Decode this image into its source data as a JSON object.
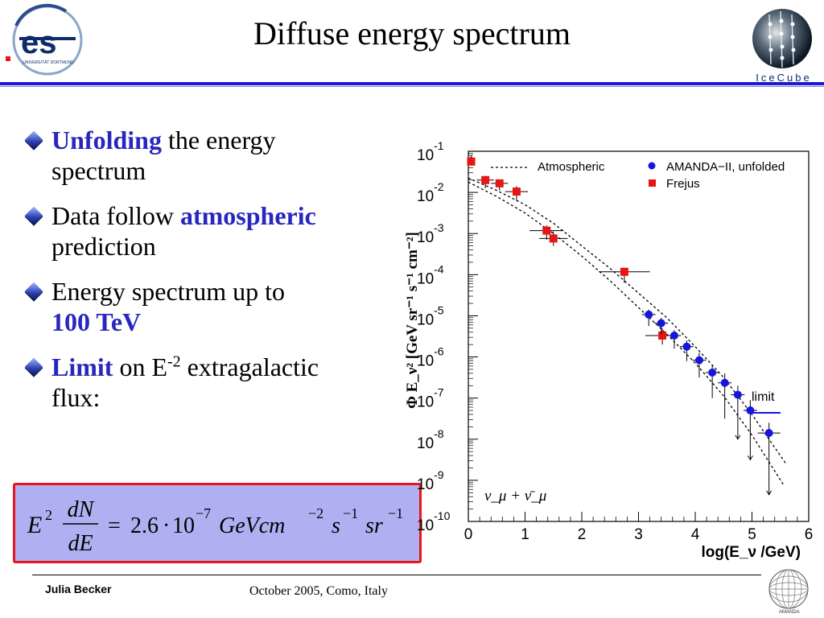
{
  "slide": {
    "title": "Diffuse energy spectrum",
    "logo_left_text": "UNIVERSITÄT DORTMUND",
    "logo_right_text": "IceCube",
    "footer_logo_text": "AMANDA",
    "author": "Julia Becker",
    "date_location": "October 2005, Como, Italy"
  },
  "bullets": [
    {
      "highlight": "Unfolding",
      "line1": " the energy",
      "line2": "spectrum"
    },
    {
      "pre": "Data follow ",
      "highlight": "atmospheric",
      "line2": "prediction"
    },
    {
      "line1": "Energy spectrum up to",
      "highlight": "100 TeV"
    },
    {
      "highlight": "Limit",
      "pre": " on E",
      "sup": "-2",
      "post": " extragalactic",
      "line2": "flux:"
    }
  ],
  "formula": {
    "lhs_E": "E",
    "lhs_exp": "2",
    "frac_num": "dN",
    "frac_den": "dE",
    "equals": "=",
    "coef": "2.6",
    "dot": "·",
    "base": "10",
    "base_exp": "−7",
    "u1": "GeVcm",
    "u1_exp": "−2",
    "u2": "s",
    "u2_exp": "−1",
    "u3": "sr",
    "u3_exp": "−1"
  },
  "colors": {
    "accent_blue": "#2727c0",
    "rule_blue": "#1c16d6",
    "formula_bg": "#aeb0f2",
    "formula_border": "#e8161c",
    "amanda_points": "#1515e0",
    "frejus_points": "#e81515"
  },
  "chart_data": {
    "type": "scatter",
    "ylabel": "Φ E_ν² [GeV sr⁻¹ s⁻¹ cm⁻²]",
    "xlabel": "log(E_ν /GeV)",
    "xlim": [
      0,
      6
    ],
    "ylim_log10": [
      -10,
      -1
    ],
    "y_scale": "log",
    "x_ticks": [
      "0",
      "1",
      "2",
      "3",
      "4",
      "5",
      "6"
    ],
    "y_ticks": [
      {
        "base": "10",
        "exp": "-1"
      },
      {
        "base": "10",
        "exp": "-2"
      },
      {
        "base": "10",
        "exp": "-3"
      },
      {
        "base": "10",
        "exp": "-4"
      },
      {
        "base": "10",
        "exp": "-5"
      },
      {
        "base": "10",
        "exp": "-6"
      },
      {
        "base": "10",
        "exp": "-7"
      },
      {
        "base": "10",
        "exp": "-8"
      },
      {
        "base": "10",
        "exp": "-9"
      },
      {
        "base": "10",
        "exp": "-10"
      }
    ],
    "legend_placement": "top-right",
    "legend": {
      "atmospheric": "Atmospheric",
      "amanda": "AMANDA−II, unfolded",
      "frejus": "Frejus",
      "limit": "limit"
    },
    "annotation": "ν_μ + ν̄_μ",
    "atmospheric_upper": [
      [
        0.0,
        -1.65
      ],
      [
        0.5,
        -1.95
      ],
      [
        1.0,
        -2.3
      ],
      [
        1.5,
        -2.75
      ],
      [
        2.0,
        -3.3
      ],
      [
        2.5,
        -3.85
      ],
      [
        3.0,
        -4.45
      ],
      [
        3.5,
        -5.05
      ],
      [
        4.0,
        -5.75
      ],
      [
        4.5,
        -6.5
      ],
      [
        5.0,
        -7.4
      ],
      [
        5.6,
        -8.6
      ]
    ],
    "atmospheric_lower": [
      [
        0.0,
        -1.75
      ],
      [
        0.5,
        -2.1
      ],
      [
        1.0,
        -2.5
      ],
      [
        1.5,
        -3.0
      ],
      [
        2.0,
        -3.55
      ],
      [
        2.5,
        -4.15
      ],
      [
        3.0,
        -4.8
      ],
      [
        3.5,
        -5.45
      ],
      [
        4.0,
        -6.15
      ],
      [
        4.5,
        -6.95
      ],
      [
        5.0,
        -7.9
      ],
      [
        5.55,
        -9.1
      ]
    ],
    "frejus": [
      {
        "x": 0.05,
        "y": -1.25,
        "xerr": 0.0,
        "ylo": -1.35,
        "yhi": -1.1
      },
      {
        "x": 0.3,
        "y": -1.7,
        "xerr": 0.15,
        "ylo": -1.9,
        "yhi": -1.6
      },
      {
        "x": 0.55,
        "y": -1.78,
        "xerr": 0.15,
        "ylo": -1.95,
        "yhi": -1.7
      },
      {
        "x": 0.85,
        "y": -1.98,
        "xerr": 0.2,
        "ylo": -2.2,
        "yhi": -1.85
      },
      {
        "x": 1.38,
        "y": -2.93,
        "xerr": 0.3,
        "ylo": -3.15,
        "yhi": -2.8
      },
      {
        "x": 1.5,
        "y": -3.12,
        "xerr": 0.25,
        "ylo": -3.3,
        "yhi": -2.95
      },
      {
        "x": 2.75,
        "y": -3.93,
        "xerr": 0.45,
        "ylo": -4.2,
        "yhi": -3.85
      },
      {
        "x": 3.42,
        "y": -5.48,
        "xerr": 0.3,
        "ylo": -5.7,
        "yhi": -5.3
      }
    ],
    "amanda": [
      {
        "x": 3.18,
        "y": -4.97,
        "xerr": 0.12,
        "ylo": -5.25,
        "yhi": -4.85
      },
      {
        "x": 3.4,
        "y": -5.18,
        "xerr": 0.12,
        "ylo": -5.45,
        "yhi": -5.05
      },
      {
        "x": 3.63,
        "y": -5.48,
        "xerr": 0.12,
        "ylo": -5.8,
        "yhi": -5.35
      },
      {
        "x": 3.85,
        "y": -5.75,
        "xerr": 0.12,
        "ylo": -6.1,
        "yhi": -5.6
      },
      {
        "x": 4.07,
        "y": -6.08,
        "xerr": 0.12,
        "ylo": -6.5,
        "yhi": -5.9
      },
      {
        "x": 4.3,
        "y": -6.38,
        "xerr": 0.12,
        "ylo": -7.0,
        "yhi": -6.2
      },
      {
        "x": 4.52,
        "y": -6.63,
        "xerr": 0.12,
        "ylo": -7.5,
        "yhi": -6.4
      },
      {
        "x": 4.75,
        "y": -6.92,
        "xerr": 0.12,
        "ylo": -8.0,
        "yhi": -6.7
      },
      {
        "x": 4.97,
        "y": -7.3,
        "xerr": 0.12,
        "ylo": -8.5,
        "yhi": -7.05
      },
      {
        "x": 5.3,
        "y": -7.85,
        "xerr": 0.2,
        "ylo": -9.35,
        "yhi": -7.6
      }
    ]
  }
}
